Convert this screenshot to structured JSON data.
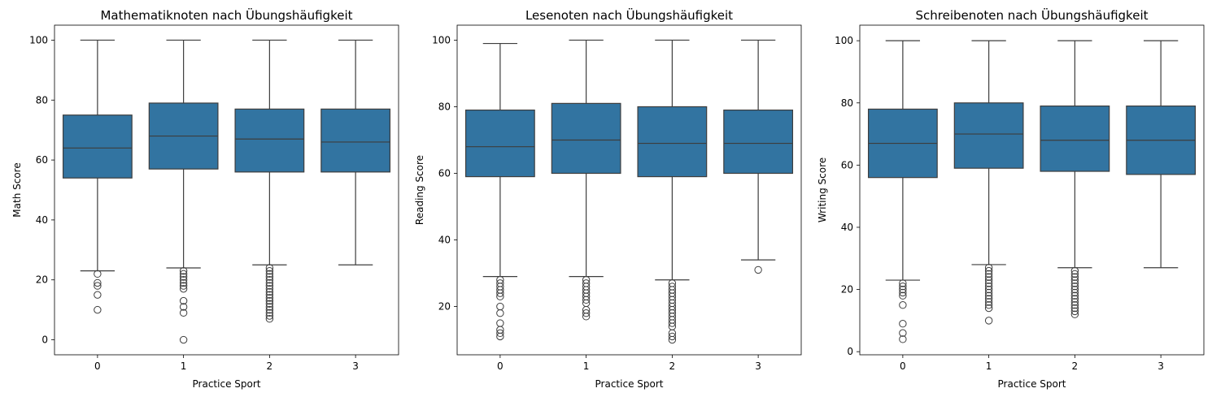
{
  "chart_data": [
    {
      "type": "box",
      "title": "Mathematiknoten nach Übungshäufigkeit",
      "xlabel": "Practice Sport",
      "ylabel": "Math Score",
      "ylim": [
        -5,
        105
      ],
      "yticks": [
        0,
        20,
        40,
        60,
        80,
        100
      ],
      "categories": [
        "0",
        "1",
        "2",
        "3"
      ],
      "color": "#3274a1",
      "boxes": [
        {
          "category": "0",
          "whislo": 23,
          "q1": 54,
          "median": 64,
          "q3": 75,
          "whishi": 100,
          "fliers": [
            22,
            19,
            18,
            15,
            10
          ]
        },
        {
          "category": "1",
          "whislo": 24,
          "q1": 57,
          "median": 68,
          "q3": 79,
          "whishi": 100,
          "fliers": [
            23,
            22,
            21,
            20,
            19,
            18,
            17,
            13,
            11,
            9,
            0
          ]
        },
        {
          "category": "2",
          "whislo": 25,
          "q1": 56,
          "median": 67,
          "q3": 77,
          "whishi": 100,
          "fliers": [
            24,
            23,
            22,
            21,
            20,
            19,
            18,
            17,
            16,
            15,
            14,
            13,
            12,
            11,
            10,
            9,
            8,
            7
          ]
        },
        {
          "category": "3",
          "whislo": 25,
          "q1": 56,
          "median": 66,
          "q3": 77,
          "whishi": 100,
          "fliers": []
        }
      ]
    },
    {
      "type": "box",
      "title": "Lesenoten nach Übungshäufigkeit",
      "xlabel": "Practice Sport",
      "ylabel": "Reading Score",
      "ylim": [
        5.5,
        104.5
      ],
      "yticks": [
        20,
        40,
        60,
        80,
        100
      ],
      "categories": [
        "0",
        "1",
        "2",
        "3"
      ],
      "color": "#3274a1",
      "boxes": [
        {
          "category": "0",
          "whislo": 29,
          "q1": 59,
          "median": 68,
          "q3": 79,
          "whishi": 99,
          "fliers": [
            28,
            27,
            26,
            25,
            24,
            23,
            20,
            18,
            15,
            13,
            12,
            11
          ]
        },
        {
          "category": "1",
          "whislo": 29,
          "q1": 60,
          "median": 70,
          "q3": 81,
          "whishi": 100,
          "fliers": [
            28,
            27,
            26,
            25,
            24,
            23,
            22,
            21,
            19,
            18,
            17
          ]
        },
        {
          "category": "2",
          "whislo": 28,
          "q1": 59,
          "median": 69,
          "q3": 80,
          "whishi": 100,
          "fliers": [
            27,
            26,
            25,
            24,
            23,
            22,
            21,
            20,
            19,
            18,
            17,
            16,
            15,
            14,
            12,
            11,
            10
          ]
        },
        {
          "category": "3",
          "whislo": 34,
          "q1": 60,
          "median": 69,
          "q3": 79,
          "whishi": 100,
          "fliers": [
            31
          ]
        }
      ]
    },
    {
      "type": "box",
      "title": "Schreibenoten nach Übungshäufigkeit",
      "xlabel": "Practice Sport",
      "ylabel": "Writing Score",
      "ylim": [
        -1,
        105
      ],
      "yticks": [
        0,
        20,
        40,
        60,
        80,
        100
      ],
      "categories": [
        "0",
        "1",
        "2",
        "3"
      ],
      "color": "#3274a1",
      "boxes": [
        {
          "category": "0",
          "whislo": 23,
          "q1": 56,
          "median": 67,
          "q3": 78,
          "whishi": 100,
          "fliers": [
            22,
            21,
            20,
            19,
            18,
            15,
            9,
            6,
            4
          ]
        },
        {
          "category": "1",
          "whislo": 28,
          "q1": 59,
          "median": 70,
          "q3": 80,
          "whishi": 100,
          "fliers": [
            27,
            26,
            25,
            24,
            23,
            22,
            21,
            20,
            19,
            18,
            17,
            16,
            15,
            14,
            10
          ]
        },
        {
          "category": "2",
          "whislo": 27,
          "q1": 58,
          "median": 68,
          "q3": 79,
          "whishi": 100,
          "fliers": [
            26,
            25,
            24,
            23,
            22,
            21,
            20,
            19,
            18,
            17,
            16,
            15,
            14,
            13,
            12
          ]
        },
        {
          "category": "3",
          "whislo": 27,
          "q1": 57,
          "median": 68,
          "q3": 79,
          "whishi": 100,
          "fliers": []
        }
      ]
    }
  ]
}
